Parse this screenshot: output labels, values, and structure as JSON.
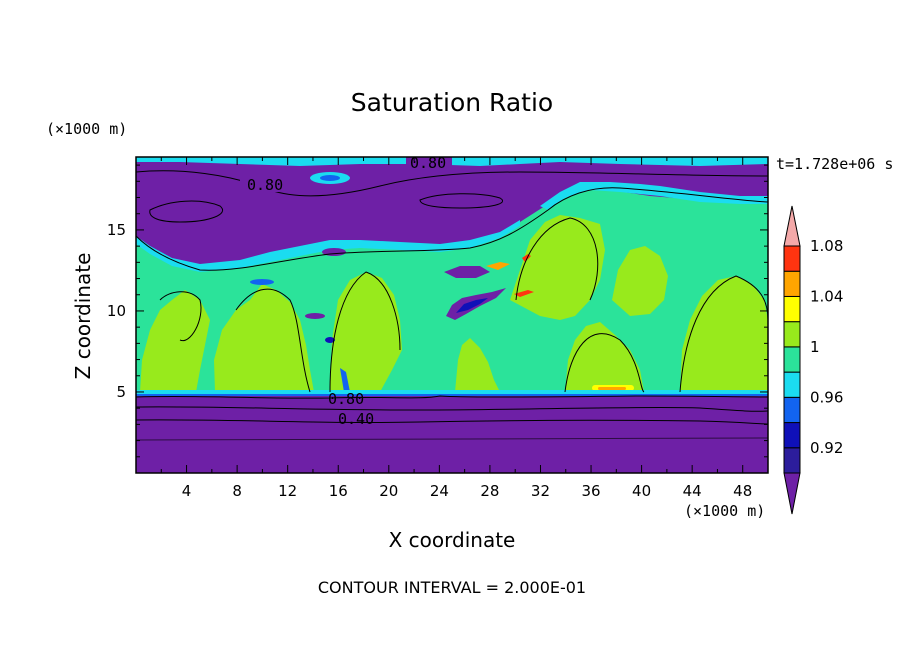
{
  "chart_data": {
    "type": "heatmap",
    "title": "Saturation Ratio",
    "xlabel": "X coordinate",
    "ylabel": "Z coordinate",
    "x_unit": "(×1000 m)",
    "y_unit": "(×1000 m)",
    "time_label": "t=1.728e+06 s",
    "footer": "CONTOUR INTERVAL = 2.000E-01",
    "xlim": [
      0,
      50
    ],
    "ylim": [
      0,
      19.5
    ],
    "x_ticks": [
      4,
      8,
      12,
      16,
      20,
      24,
      28,
      32,
      36,
      40,
      44,
      48
    ],
    "y_ticks": [
      5,
      10,
      15
    ],
    "color_levels": [
      {
        "min": null,
        "max": 0.92,
        "color": "#6e20a6"
      },
      {
        "min": 0.92,
        "max": 0.94,
        "color": "#2c1d9c"
      },
      {
        "min": 0.94,
        "max": 0.96,
        "color": "#0f10b8"
      },
      {
        "min": 0.96,
        "max": 0.98,
        "color": "#1264f0"
      },
      {
        "min": 0.98,
        "max": 1.0,
        "color": "#1bdcf0"
      },
      {
        "min": 1.0,
        "max": 1.02,
        "color": "#2be39a"
      },
      {
        "min": 1.02,
        "max": 1.04,
        "color": "#98ea1c"
      },
      {
        "min": 1.04,
        "max": 1.06,
        "color": "#ffff00"
      },
      {
        "min": 1.06,
        "max": 1.08,
        "color": "#ffa500"
      },
      {
        "min": 1.08,
        "max": 1.1,
        "color": "#ff3410"
      },
      {
        "min": 1.1,
        "max": null,
        "color": "#f4a9a9"
      }
    ],
    "colorbar_labels": [
      "1.08",
      "1.04",
      "1",
      "0.96",
      "0.92"
    ],
    "regions": [
      {
        "name": "lower-dry-layer",
        "z_range": [
          0,
          4.9
        ],
        "value_level": "<0.92"
      },
      {
        "name": "saturated-cloud-layer",
        "z_range": [
          5,
          13.5
        ],
        "value_level": "1.00-1.02"
      },
      {
        "name": "upper-dry-layer",
        "z_range": [
          13.5,
          19.5
        ],
        "value_level": "<0.92"
      }
    ],
    "contour_labels": [
      "0.80",
      "0.80",
      "0.80",
      "0.40"
    ]
  }
}
